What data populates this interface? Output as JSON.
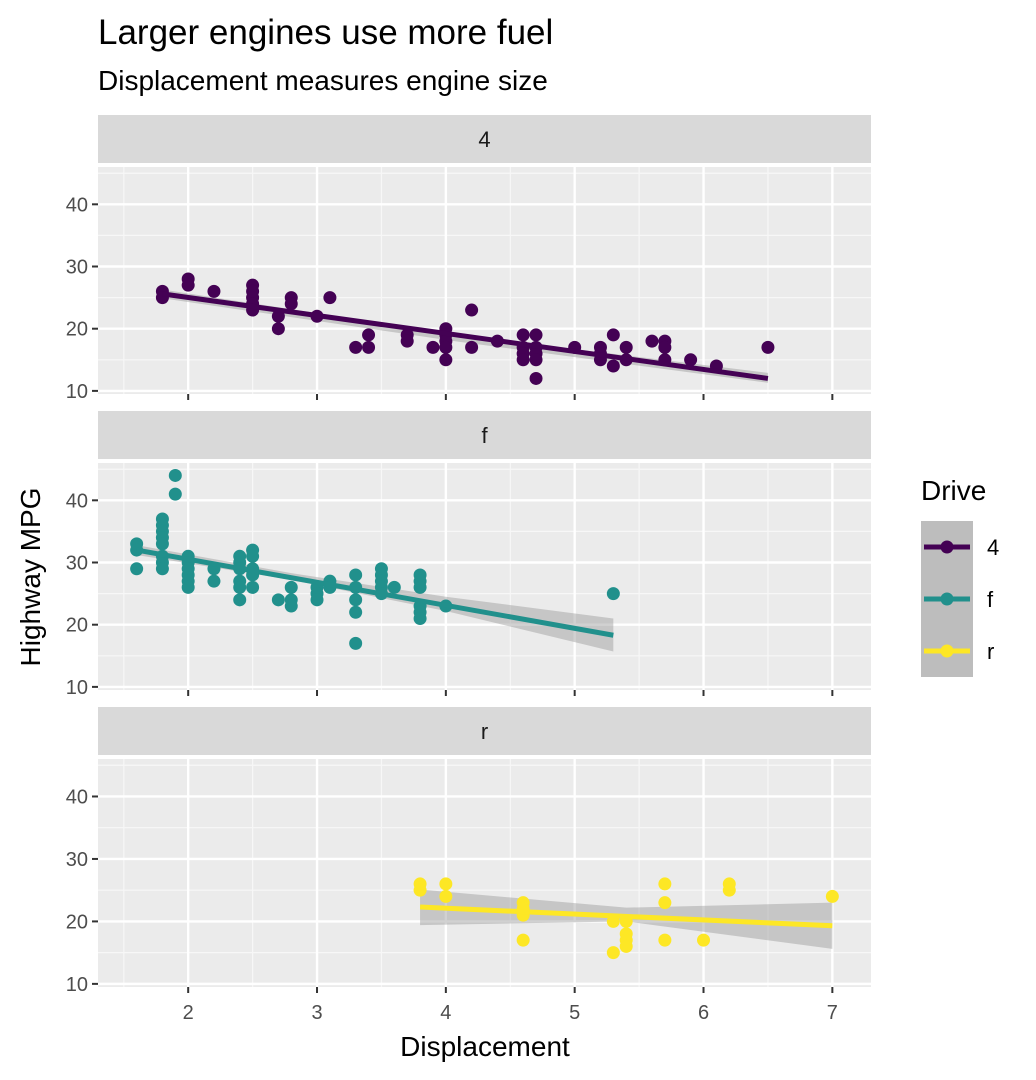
{
  "chart_data": {
    "type": "scatter",
    "title": "Larger engines use more fuel",
    "subtitle": "Displacement measures engine size",
    "xlabel": "Displacement",
    "ylabel": "Highway MPG",
    "xlim": [
      1.3,
      7.3
    ],
    "ylim": [
      9.5,
      46
    ],
    "x_ticks": [
      2,
      3,
      4,
      5,
      6,
      7
    ],
    "y_ticks": [
      10,
      20,
      30,
      40
    ],
    "grid": true,
    "legend": {
      "title": "Drive",
      "position": "right",
      "entries": [
        "4",
        "f",
        "r"
      ]
    },
    "facets": [
      {
        "strip": "4",
        "color": "#440154",
        "points": [
          [
            1.8,
            26
          ],
          [
            1.8,
            25
          ],
          [
            2.0,
            28
          ],
          [
            2.0,
            27
          ],
          [
            2.2,
            26
          ],
          [
            2.5,
            27
          ],
          [
            2.5,
            26
          ],
          [
            2.5,
            25
          ],
          [
            2.5,
            24
          ],
          [
            2.5,
            23
          ],
          [
            2.7,
            22
          ],
          [
            2.7,
            20
          ],
          [
            2.8,
            25
          ],
          [
            2.8,
            24
          ],
          [
            3.0,
            22
          ],
          [
            3.1,
            25
          ],
          [
            3.3,
            17
          ],
          [
            3.4,
            19
          ],
          [
            3.4,
            17
          ],
          [
            3.7,
            19
          ],
          [
            3.7,
            18
          ],
          [
            3.9,
            17
          ],
          [
            4.0,
            20
          ],
          [
            4.0,
            19
          ],
          [
            4.0,
            18
          ],
          [
            4.0,
            17
          ],
          [
            4.0,
            15
          ],
          [
            4.2,
            23
          ],
          [
            4.2,
            17
          ],
          [
            4.4,
            18
          ],
          [
            4.6,
            19
          ],
          [
            4.6,
            17
          ],
          [
            4.6,
            16
          ],
          [
            4.6,
            15
          ],
          [
            4.7,
            19
          ],
          [
            4.7,
            17
          ],
          [
            4.7,
            16
          ],
          [
            4.7,
            15
          ],
          [
            4.7,
            12
          ],
          [
            5.0,
            17
          ],
          [
            5.2,
            17
          ],
          [
            5.2,
            16
          ],
          [
            5.2,
            15
          ],
          [
            5.3,
            19
          ],
          [
            5.3,
            14
          ],
          [
            5.4,
            17
          ],
          [
            5.4,
            15
          ],
          [
            5.6,
            18
          ],
          [
            5.7,
            18
          ],
          [
            5.7,
            17
          ],
          [
            5.7,
            15
          ],
          [
            5.9,
            15
          ],
          [
            6.1,
            14
          ],
          [
            6.5,
            17
          ]
        ],
        "fit": {
          "x": [
            1.8,
            6.5
          ],
          "y": [
            25.6,
            12.0
          ]
        },
        "band": {
          "x": [
            1.8,
            4.1,
            6.5
          ],
          "lower": [
            24.9,
            17.9,
            11.3
          ],
          "upper": [
            26.3,
            19.0,
            12.9
          ]
        }
      },
      {
        "strip": "f",
        "color": "#21908C",
        "points": [
          [
            1.6,
            33
          ],
          [
            1.6,
            32
          ],
          [
            1.6,
            29
          ],
          [
            1.8,
            37
          ],
          [
            1.8,
            36
          ],
          [
            1.8,
            35
          ],
          [
            1.8,
            34
          ],
          [
            1.8,
            33
          ],
          [
            1.8,
            31
          ],
          [
            1.8,
            30
          ],
          [
            1.8,
            29
          ],
          [
            1.9,
            44
          ],
          [
            1.9,
            41
          ],
          [
            2.0,
            31
          ],
          [
            2.0,
            30
          ],
          [
            2.0,
            29
          ],
          [
            2.0,
            28
          ],
          [
            2.0,
            27
          ],
          [
            2.0,
            26
          ],
          [
            2.2,
            29
          ],
          [
            2.2,
            27
          ],
          [
            2.4,
            31
          ],
          [
            2.4,
            30
          ],
          [
            2.4,
            29
          ],
          [
            2.4,
            27
          ],
          [
            2.4,
            26
          ],
          [
            2.4,
            24
          ],
          [
            2.5,
            32
          ],
          [
            2.5,
            31
          ],
          [
            2.5,
            29
          ],
          [
            2.5,
            28
          ],
          [
            2.5,
            26
          ],
          [
            2.7,
            24
          ],
          [
            2.8,
            26
          ],
          [
            2.8,
            24
          ],
          [
            2.8,
            23
          ],
          [
            3.0,
            26
          ],
          [
            3.0,
            25
          ],
          [
            3.0,
            24
          ],
          [
            3.1,
            27
          ],
          [
            3.1,
            26
          ],
          [
            3.3,
            28
          ],
          [
            3.3,
            26
          ],
          [
            3.3,
            24
          ],
          [
            3.3,
            22
          ],
          [
            3.3,
            17
          ],
          [
            3.5,
            29
          ],
          [
            3.5,
            28
          ],
          [
            3.5,
            27
          ],
          [
            3.5,
            26
          ],
          [
            3.5,
            25
          ],
          [
            3.6,
            26
          ],
          [
            3.8,
            28
          ],
          [
            3.8,
            27
          ],
          [
            3.8,
            26
          ],
          [
            3.8,
            23
          ],
          [
            3.8,
            22
          ],
          [
            3.8,
            21
          ],
          [
            4.0,
            23
          ],
          [
            5.3,
            25
          ]
        ],
        "fit": {
          "x": [
            1.6,
            5.3
          ],
          "y": [
            32.0,
            18.3
          ]
        },
        "band": {
          "x": [
            1.6,
            2.8,
            4.0,
            5.3
          ],
          "lower": [
            31.2,
            27.2,
            22.2,
            15.7
          ],
          "upper": [
            32.8,
            28.3,
            24.5,
            21.0
          ]
        }
      },
      {
        "strip": "r",
        "color": "#FDE725",
        "points": [
          [
            3.8,
            26
          ],
          [
            3.8,
            25
          ],
          [
            4.0,
            26
          ],
          [
            4.0,
            24
          ],
          [
            4.6,
            23
          ],
          [
            4.6,
            22
          ],
          [
            4.6,
            21
          ],
          [
            4.6,
            17
          ],
          [
            5.3,
            20
          ],
          [
            5.3,
            15
          ],
          [
            5.4,
            20
          ],
          [
            5.4,
            18
          ],
          [
            5.4,
            17
          ],
          [
            5.4,
            16
          ],
          [
            5.7,
            26
          ],
          [
            5.7,
            23
          ],
          [
            5.7,
            17
          ],
          [
            6.0,
            17
          ],
          [
            6.2,
            26
          ],
          [
            6.2,
            25
          ],
          [
            7.0,
            24
          ]
        ],
        "fit": {
          "x": [
            3.8,
            7.0
          ],
          "y": [
            22.3,
            19.3
          ]
        },
        "band": {
          "x": [
            3.8,
            5.4,
            7.0
          ],
          "lower": [
            19.4,
            20.0,
            15.6
          ],
          "upper": [
            25.1,
            22.2,
            23.0
          ]
        }
      }
    ]
  }
}
